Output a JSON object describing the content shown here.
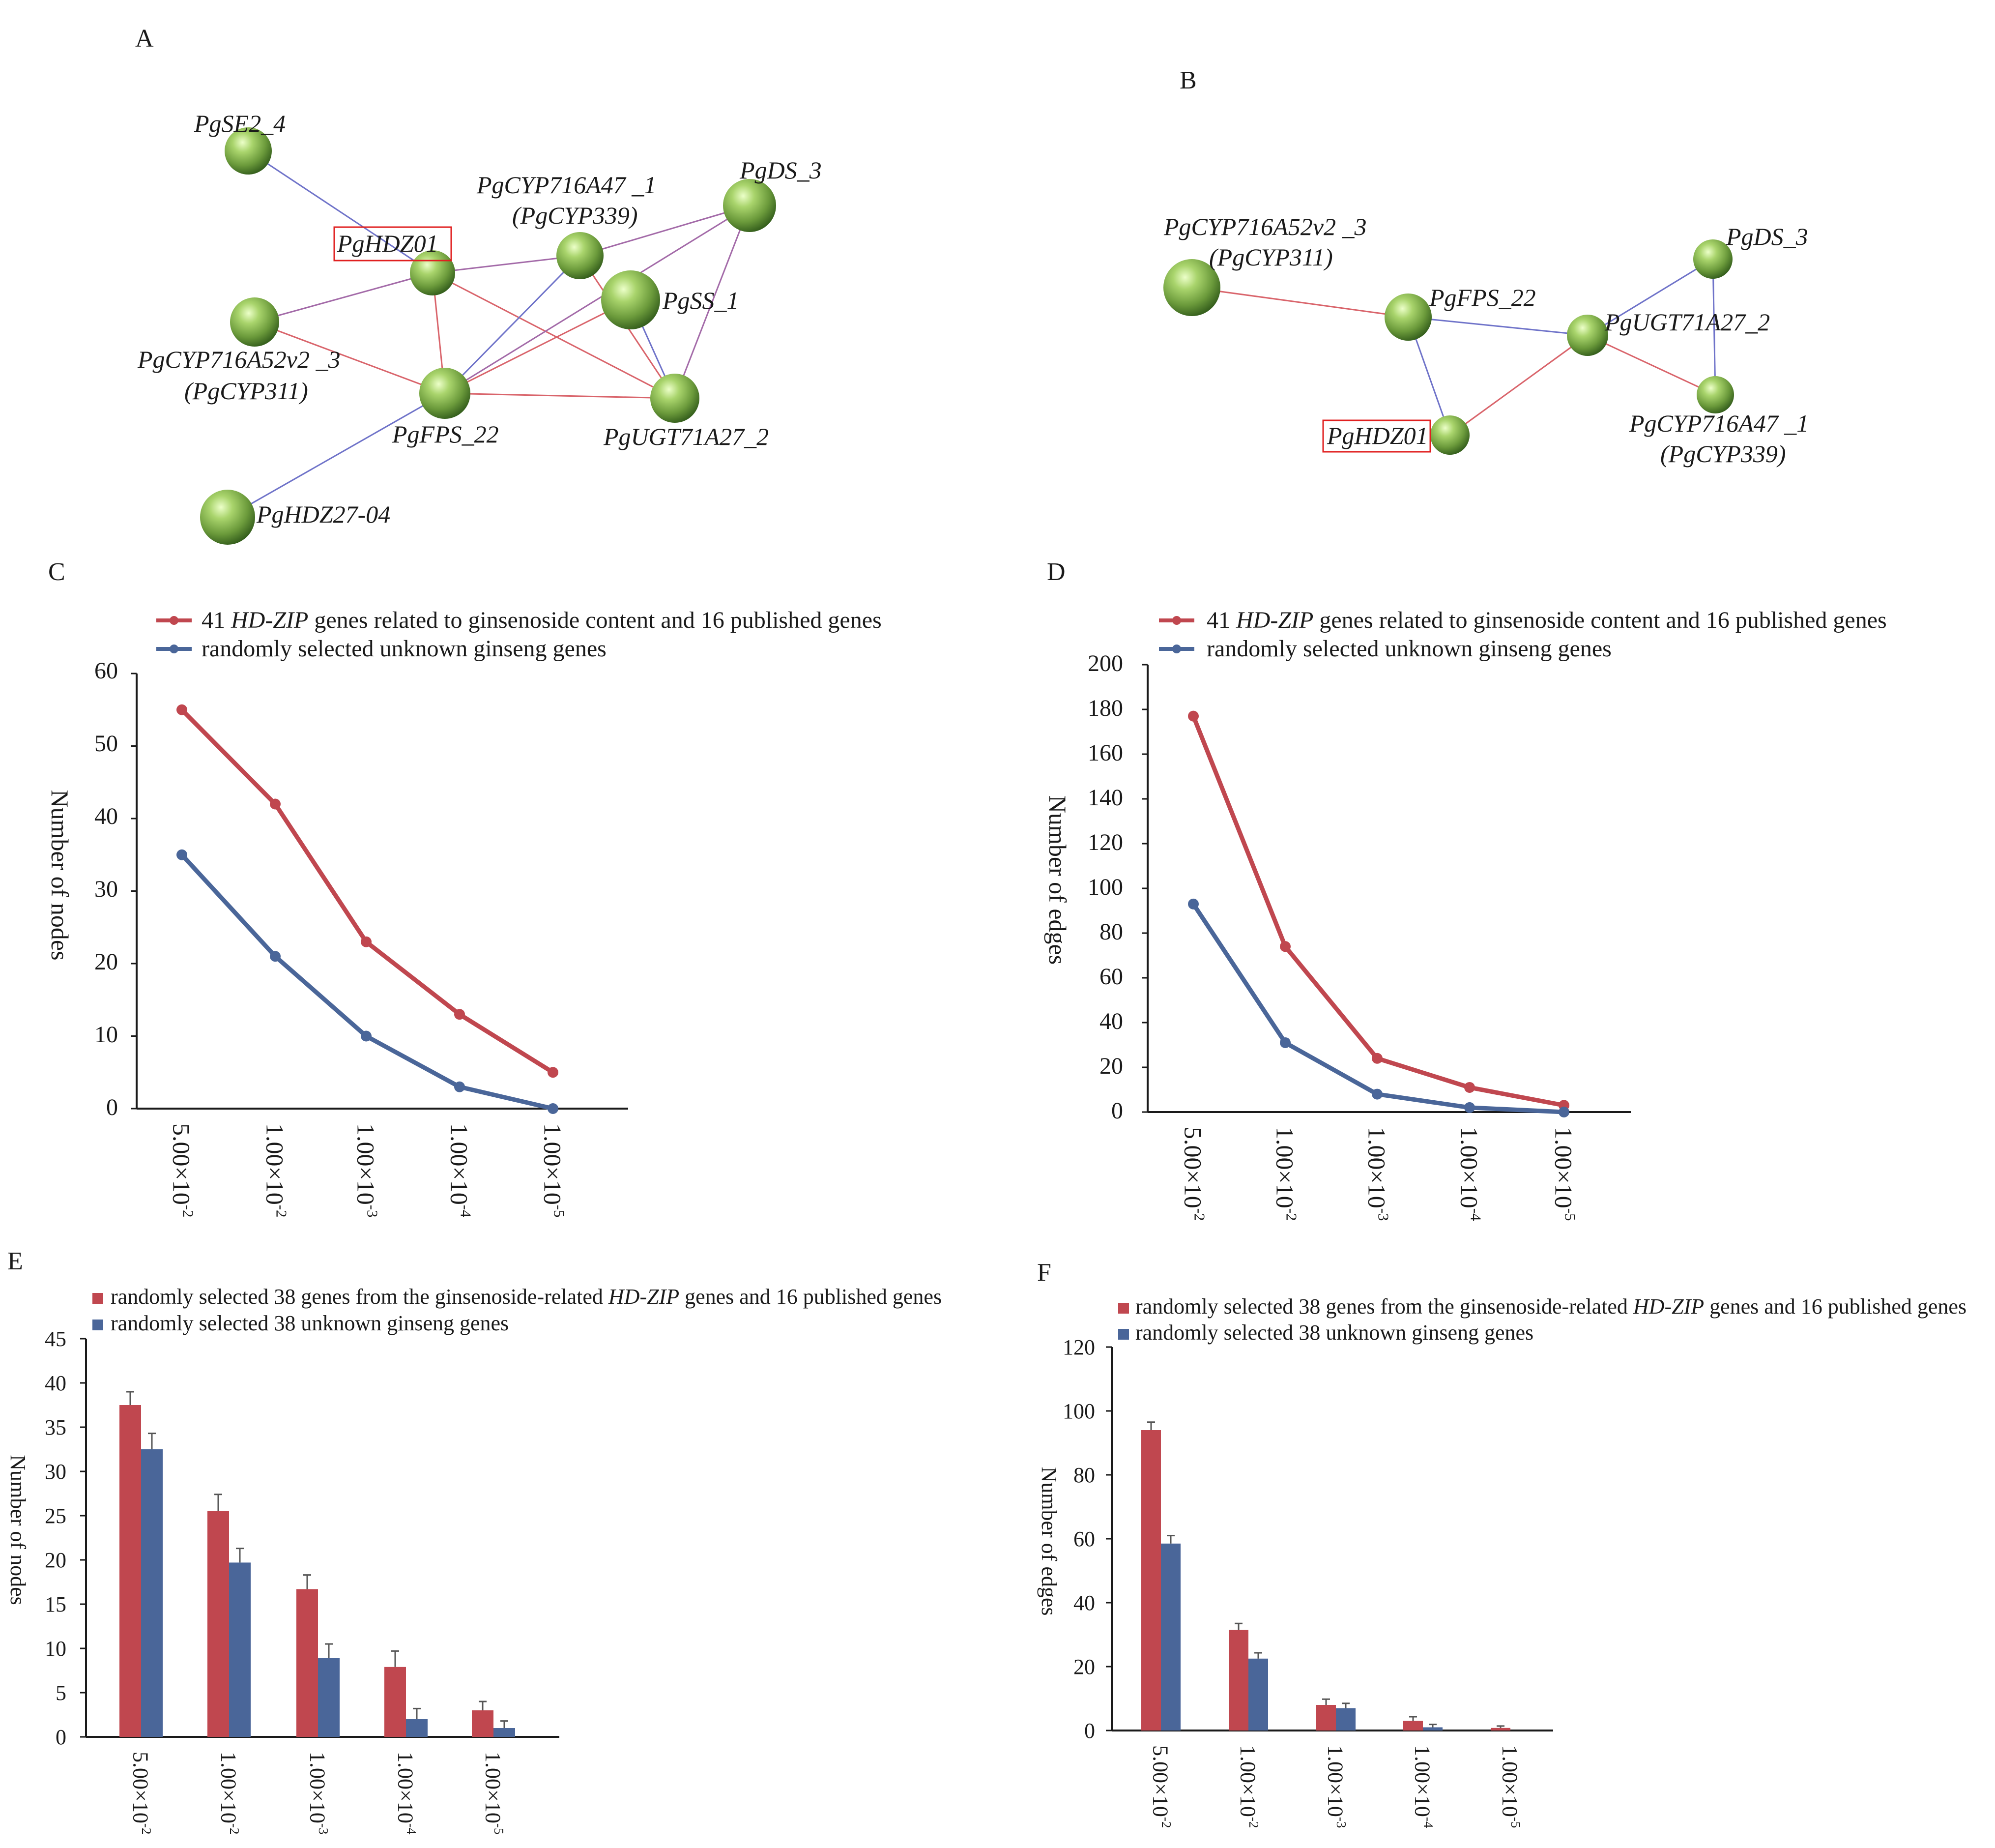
{
  "colors": {
    "red": "#c0474f",
    "blue": "#4a6699",
    "edge_red": "#d9646b",
    "edge_blue": "#6f73c9",
    "node_light": "#c9ec8f",
    "node_mid": "#80ad4f",
    "node_dark": "#3f6b22"
  },
  "panels": {
    "A": {
      "letter": "A",
      "nodes": [
        {
          "id": "se2",
          "label": "PgSE2_4"
        },
        {
          "id": "hdz01",
          "label": "PgHDZ01",
          "boxed": true
        },
        {
          "id": "cyp339",
          "label": "PgCYP716A47 _1",
          "label2": "(PgCYP339)"
        },
        {
          "id": "ds3",
          "label": "PgDS_3"
        },
        {
          "id": "ss1",
          "label": "PgSS_1"
        },
        {
          "id": "cyp311",
          "label": "PgCYP716A52v2 _3",
          "label2": "(PgCYP311)"
        },
        {
          "id": "fps22",
          "label": "PgFPS_22"
        },
        {
          "id": "ugt",
          "label": "PgUGT71A27_2"
        },
        {
          "id": "hdz27",
          "label": "PgHDZ27-04"
        }
      ],
      "edges": [
        {
          "from": "se2",
          "to": "hdz01",
          "type": "blue"
        },
        {
          "from": "hdz01",
          "to": "cyp339",
          "type": "purple"
        },
        {
          "from": "hdz01",
          "to": "cyp311",
          "type": "purple"
        },
        {
          "from": "hdz01",
          "to": "fps22",
          "type": "red"
        },
        {
          "from": "hdz01",
          "to": "ugt",
          "type": "red"
        },
        {
          "from": "cyp339",
          "to": "ds3",
          "type": "purple"
        },
        {
          "from": "cyp339",
          "to": "fps22",
          "type": "blue"
        },
        {
          "from": "cyp339",
          "to": "ugt",
          "type": "red"
        },
        {
          "from": "ds3",
          "to": "fps22",
          "type": "purple"
        },
        {
          "from": "ds3",
          "to": "ugt",
          "type": "purple"
        },
        {
          "from": "ss1",
          "to": "fps22",
          "type": "red"
        },
        {
          "from": "ss1",
          "to": "ugt",
          "type": "blue"
        },
        {
          "from": "cyp311",
          "to": "fps22",
          "type": "red"
        },
        {
          "from": "fps22",
          "to": "ugt",
          "type": "red"
        },
        {
          "from": "fps22",
          "to": "hdz27",
          "type": "blue"
        }
      ]
    },
    "B": {
      "letter": "B",
      "nodes": [
        {
          "id": "cyp311",
          "label": "PgCYP716A52v2 _3",
          "label2": "(PgCYP311)"
        },
        {
          "id": "fps22",
          "label": "PgFPS_22"
        },
        {
          "id": "ugt",
          "label": "PgUGT71A27_2"
        },
        {
          "id": "ds3",
          "label": "PgDS_3"
        },
        {
          "id": "cyp339",
          "label": "PgCYP716A47 _1",
          "label2": "(PgCYP339)"
        },
        {
          "id": "hdz01",
          "label": "PgHDZ01",
          "boxed": true
        }
      ],
      "edges": [
        {
          "from": "cyp311",
          "to": "fps22",
          "type": "red"
        },
        {
          "from": "fps22",
          "to": "ugt",
          "type": "blue"
        },
        {
          "from": "fps22",
          "to": "hdz01",
          "type": "blue"
        },
        {
          "from": "ugt",
          "to": "hdz01",
          "type": "red"
        },
        {
          "from": "ugt",
          "to": "ds3",
          "type": "blue"
        },
        {
          "from": "ugt",
          "to": "cyp339",
          "type": "red"
        },
        {
          "from": "ds3",
          "to": "cyp339",
          "type": "blue"
        }
      ]
    },
    "C": {
      "letter": "C",
      "legend": [
        {
          "pre": "41 ",
          "it": "HD-ZIP",
          "post": " genes related to ginsenoside content and 16 published genes"
        },
        {
          "pre": "randomly selected unknown ginseng genes",
          "it": "",
          "post": ""
        }
      ],
      "ytick_labels": [
        "0",
        "10",
        "20",
        "30",
        "40",
        "50",
        "60"
      ]
    },
    "D": {
      "letter": "D",
      "legend": [
        {
          "pre": "41 ",
          "it": "HD-ZIP",
          "post": " genes related to ginsenoside content and 16 published genes"
        },
        {
          "pre": "randomly selected unknown ginseng genes",
          "it": "",
          "post": ""
        }
      ],
      "ytick_labels": [
        "0",
        "20",
        "40",
        "60",
        "80",
        "100",
        "120",
        "140",
        "160",
        "180",
        "200"
      ]
    },
    "E": {
      "letter": "E",
      "legend": [
        {
          "pre": "randomly selected 38 genes from the ginsenoside-related ",
          "it": "HD-ZIP",
          "post": " genes and 16 published genes"
        },
        {
          "pre": "randomly selected 38 unknown ginseng genes",
          "it": "",
          "post": ""
        }
      ],
      "ytick_labels": [
        "0",
        "5",
        "10",
        "15",
        "20",
        "25",
        "30",
        "35",
        "40",
        "45"
      ]
    },
    "F": {
      "letter": "F",
      "legend": [
        {
          "pre": "randomly selected 38 genes from the ginsenoside-related ",
          "it": "HD-ZIP",
          "post": " genes and 16 published genes"
        },
        {
          "pre": "randomly selected 38 unknown ginseng genes",
          "it": "",
          "post": ""
        }
      ],
      "ytick_labels": [
        "0",
        "20",
        "40",
        "60",
        "80",
        "100",
        "120"
      ]
    }
  },
  "chart_data": [
    {
      "panel": "C",
      "type": "line",
      "categories": [
        "5.00×10⁻²",
        "1.00×10⁻²",
        "1.00×10⁻³",
        "1.00×10⁻⁴",
        "1.00×10⁻⁵"
      ],
      "category_base": "1.00×10",
      "category_first_base": "5.00×10",
      "category_exponents": [
        "-2",
        "-2",
        "-3",
        "-4",
        "-5"
      ],
      "series": [
        {
          "name": "41 HD-ZIP genes related to ginsenoside content and 16 published genes",
          "values": [
            55,
            42,
            23,
            13,
            5
          ],
          "color": "#c0474f"
        },
        {
          "name": "randomly selected unknown ginseng genes",
          "values": [
            35,
            21,
            10,
            3,
            0
          ],
          "color": "#4a6699"
        }
      ],
      "ylabel": "Number of nodes",
      "xlabel": "",
      "ylim": [
        0,
        60
      ],
      "yticks": [
        0,
        10,
        20,
        30,
        40,
        50,
        60
      ]
    },
    {
      "panel": "D",
      "type": "line",
      "categories": [
        "5.00×10⁻²",
        "1.00×10⁻²",
        "1.00×10⁻³",
        "1.00×10⁻⁴",
        "1.00×10⁻⁵"
      ],
      "category_base": "1.00×10",
      "category_first_base": "5.00×10",
      "category_exponents": [
        "-2",
        "-2",
        "-3",
        "-4",
        "-5"
      ],
      "series": [
        {
          "name": "41 HD-ZIP genes related to ginsenoside content and 16 published genes",
          "values": [
            177,
            74,
            24,
            11,
            3
          ],
          "color": "#c0474f"
        },
        {
          "name": "randomly selected unknown ginseng genes",
          "values": [
            93,
            31,
            8,
            2,
            0
          ],
          "color": "#4a6699"
        }
      ],
      "ylabel": "Number of edges",
      "xlabel": "",
      "ylim": [
        0,
        200
      ],
      "yticks": [
        0,
        20,
        40,
        60,
        80,
        100,
        120,
        140,
        160,
        180,
        200
      ]
    },
    {
      "panel": "E",
      "type": "bar",
      "categories": [
        "5.00×10⁻²",
        "1.00×10⁻²",
        "1.00×10⁻³",
        "1.00×10⁻⁴",
        "1.00×10⁻⁵"
      ],
      "category_base": "1.00×10",
      "category_first_base": "5.00×10",
      "category_exponents": [
        "-2",
        "-2",
        "-3",
        "-4",
        "-5"
      ],
      "series": [
        {
          "name": "randomly selected 38 genes from the ginsenoside-related HD-ZIP genes and 16 published genes",
          "values": [
            37.5,
            25.5,
            16.7,
            7.9,
            3.0
          ],
          "errors": [
            1.5,
            1.9,
            1.6,
            1.8,
            1.0
          ],
          "color": "#c0474f"
        },
        {
          "name": "randomly selected 38 unknown ginseng genes",
          "values": [
            32.5,
            19.7,
            8.9,
            2.0,
            1.0
          ],
          "errors": [
            1.8,
            1.6,
            1.6,
            1.2,
            0.8
          ],
          "color": "#4a6699"
        }
      ],
      "ylabel": "Number of nodes",
      "xlabel": "",
      "ylim": [
        0,
        45
      ],
      "yticks": [
        0,
        5,
        10,
        15,
        20,
        25,
        30,
        35,
        40,
        45
      ]
    },
    {
      "panel": "F",
      "type": "bar",
      "categories": [
        "5.00×10⁻²",
        "1.00×10⁻²",
        "1.00×10⁻³",
        "1.00×10⁻⁴",
        "1.00×10⁻⁵"
      ],
      "category_base": "1.00×10",
      "category_first_base": "5.00×10",
      "category_exponents": [
        "-2",
        "-2",
        "-3",
        "-4",
        "-5"
      ],
      "series": [
        {
          "name": "randomly selected 38 genes from the ginsenoside-related HD-ZIP genes and 16 published genes",
          "values": [
            94,
            31.5,
            8,
            3,
            0.8
          ],
          "errors": [
            2.5,
            2.0,
            1.8,
            1.3,
            0.6
          ],
          "color": "#c0474f"
        },
        {
          "name": "randomly selected 38 unknown ginseng genes",
          "values": [
            58.5,
            22.5,
            7,
            1,
            0
          ],
          "errors": [
            2.5,
            1.8,
            1.5,
            0.9,
            0
          ],
          "color": "#4a6699"
        }
      ],
      "ylabel": "Number of edges",
      "xlabel": "",
      "ylim": [
        0,
        120
      ],
      "yticks": [
        0,
        20,
        40,
        60,
        80,
        100,
        120
      ]
    }
  ]
}
